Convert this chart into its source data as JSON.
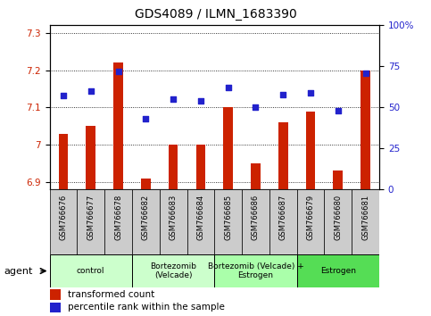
{
  "title": "GDS4089 / ILMN_1683390",
  "samples": [
    "GSM766676",
    "GSM766677",
    "GSM766678",
    "GSM766682",
    "GSM766683",
    "GSM766684",
    "GSM766685",
    "GSM766686",
    "GSM766687",
    "GSM766679",
    "GSM766680",
    "GSM766681"
  ],
  "transformed_count": [
    7.03,
    7.05,
    7.22,
    6.91,
    7.0,
    7.0,
    7.1,
    6.95,
    7.06,
    7.09,
    6.93,
    7.2
  ],
  "percentile_rank": [
    57,
    60,
    72,
    43,
    55,
    54,
    62,
    50,
    58,
    59,
    48,
    71
  ],
  "ylim_left": [
    6.88,
    7.32
  ],
  "ylim_right": [
    0,
    100
  ],
  "yticks_left": [
    6.9,
    7.0,
    7.1,
    7.2,
    7.3
  ],
  "ytick_labels_left": [
    "6.9",
    "7",
    "7.1",
    "7.2",
    "7.3"
  ],
  "yticks_right": [
    0,
    25,
    50,
    75,
    100
  ],
  "ytick_labels_right": [
    "0",
    "25",
    "50",
    "75",
    "100%"
  ],
  "bar_color": "#cc2200",
  "dot_color": "#2222cc",
  "bg_color": "#ffffff",
  "plot_bg": "#ffffff",
  "grid_color": "#000000",
  "agent_groups": [
    {
      "label": "control",
      "start": 0,
      "end": 3,
      "color": "#ccffcc"
    },
    {
      "label": "Bortezomib\n(Velcade)",
      "start": 3,
      "end": 6,
      "color": "#ccffcc"
    },
    {
      "label": "Bortezomib (Velcade) +\nEstrogen",
      "start": 6,
      "end": 9,
      "color": "#aaffaa"
    },
    {
      "label": "Estrogen",
      "start": 9,
      "end": 12,
      "color": "#55dd55"
    }
  ],
  "legend_items": [
    {
      "label": "transformed count",
      "color": "#cc2200"
    },
    {
      "label": "percentile rank within the sample",
      "color": "#2222cc"
    }
  ],
  "title_fontsize": 10,
  "tick_fontsize": 7.5,
  "label_fontsize": 7,
  "bar_width": 0.35,
  "xticklabel_fontsize": 6
}
